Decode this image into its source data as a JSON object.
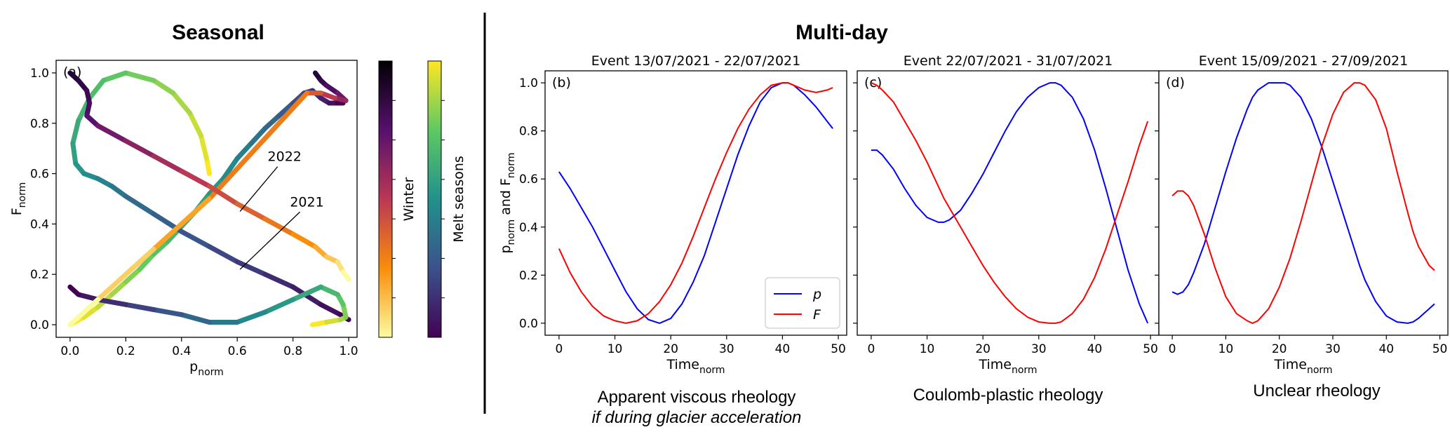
{
  "section_titles": {
    "left": "Seasonal",
    "right": "Multi-day"
  },
  "colorbars": {
    "winter_label": "Winter",
    "melt_label": "Melt seasons"
  },
  "captions": {
    "b_line1": "Apparent viscous rheology",
    "b_line2": "if during glacier acceleration",
    "c": "Coulomb-plastic rheology",
    "d": "Unclear rheology"
  },
  "colors": {
    "p": "#0000ff",
    "F": "#ff0000",
    "divider": "#000000"
  },
  "chart_data": [
    {
      "id": "a",
      "type": "line",
      "panel_label": "(a)",
      "xlabel": {
        "base": "p",
        "sub": "norm"
      },
      "ylabel": {
        "base": "F",
        "sub": "norm"
      },
      "xlim": [
        -0.05,
        1.03
      ],
      "ylim": [
        -0.05,
        1.05
      ],
      "xticks": [
        0.0,
        0.2,
        0.4,
        0.6,
        0.8,
        1.0
      ],
      "yticks": [
        0.0,
        0.2,
        0.4,
        0.6,
        0.8,
        1.0
      ],
      "tick_labels": [
        "0.0",
        "0.2",
        "0.4",
        "0.6",
        "0.8",
        "1.0"
      ],
      "grid": false,
      "annotations": [
        {
          "text": "2022",
          "x": 0.77,
          "y": 0.65,
          "point": [
            0.61,
            0.45
          ]
        },
        {
          "text": "2021",
          "x": 0.85,
          "y": 0.47,
          "point": [
            0.61,
            0.22
          ]
        }
      ],
      "series": [
        {
          "colormap": "viridis",
          "points": [
            [
              0.0,
              0.0
            ],
            [
              0.05,
              0.03
            ],
            [
              0.1,
              0.07
            ],
            [
              0.15,
              0.12
            ],
            [
              0.2,
              0.17
            ],
            [
              0.25,
              0.22
            ],
            [
              0.3,
              0.28
            ],
            [
              0.35,
              0.33
            ],
            [
              0.4,
              0.39
            ],
            [
              0.45,
              0.45
            ],
            [
              0.5,
              0.52
            ],
            [
              0.55,
              0.58
            ],
            [
              0.6,
              0.66
            ],
            [
              0.65,
              0.72
            ],
            [
              0.7,
              0.78
            ],
            [
              0.75,
              0.83
            ],
            [
              0.8,
              0.88
            ],
            [
              0.84,
              0.92
            ],
            [
              0.87,
              0.93
            ],
            [
              0.9,
              0.9
            ],
            [
              0.93,
              0.88
            ],
            [
              0.96,
              0.88
            ],
            [
              0.98,
              0.88
            ]
          ]
        },
        {
          "colormap": "viridis",
          "points": [
            [
              0.5,
              0.6
            ],
            [
              0.49,
              0.66
            ],
            [
              0.47,
              0.75
            ],
            [
              0.43,
              0.84
            ],
            [
              0.37,
              0.92
            ],
            [
              0.3,
              0.97
            ],
            [
              0.2,
              1.0
            ],
            [
              0.12,
              0.97
            ],
            [
              0.07,
              0.9
            ],
            [
              0.03,
              0.81
            ],
            [
              0.01,
              0.72
            ],
            [
              0.02,
              0.64
            ],
            [
              0.05,
              0.6
            ],
            [
              0.1,
              0.58
            ],
            [
              0.15,
              0.55
            ],
            [
              0.2,
              0.51
            ],
            [
              0.3,
              0.44
            ],
            [
              0.4,
              0.37
            ],
            [
              0.5,
              0.31
            ],
            [
              0.6,
              0.25
            ],
            [
              0.7,
              0.2
            ],
            [
              0.8,
              0.15
            ],
            [
              0.9,
              0.08
            ],
            [
              0.97,
              0.04
            ],
            [
              1.0,
              0.02
            ]
          ]
        },
        {
          "colormap": "viridis",
          "points": [
            [
              0.87,
              0.0
            ],
            [
              0.92,
              0.01
            ],
            [
              0.97,
              0.02
            ],
            [
              0.99,
              0.03
            ],
            [
              0.98,
              0.08
            ],
            [
              0.96,
              0.12
            ],
            [
              0.9,
              0.15
            ],
            [
              0.8,
              0.1
            ],
            [
              0.7,
              0.05
            ],
            [
              0.6,
              0.01
            ],
            [
              0.5,
              0.01
            ],
            [
              0.4,
              0.04
            ],
            [
              0.3,
              0.06
            ],
            [
              0.2,
              0.08
            ],
            [
              0.1,
              0.1
            ],
            [
              0.03,
              0.12
            ],
            [
              0.0,
              0.15
            ]
          ]
        },
        {
          "colormap": "plasma",
          "points": [
            [
              0.88,
              1.0
            ],
            [
              0.9,
              0.97
            ],
            [
              0.92,
              0.95
            ],
            [
              0.96,
              0.92
            ],
            [
              0.99,
              0.89
            ],
            [
              0.95,
              0.9
            ],
            [
              0.9,
              0.92
            ],
            [
              0.85,
              0.92
            ],
            [
              0.5,
              0.5
            ],
            [
              0.3,
              0.3
            ],
            [
              0.1,
              0.1
            ],
            [
              0.0,
              0.0
            ]
          ]
        },
        {
          "colormap": "plasma",
          "points": [
            [
              0.0,
              1.0
            ],
            [
              0.03,
              0.97
            ],
            [
              0.06,
              0.93
            ],
            [
              0.07,
              0.88
            ],
            [
              0.06,
              0.83
            ],
            [
              0.1,
              0.79
            ],
            [
              0.2,
              0.73
            ],
            [
              0.3,
              0.67
            ],
            [
              0.4,
              0.61
            ],
            [
              0.5,
              0.55
            ],
            [
              0.6,
              0.48
            ],
            [
              0.7,
              0.42
            ],
            [
              0.8,
              0.36
            ],
            [
              0.88,
              0.31
            ],
            [
              0.92,
              0.27
            ],
            [
              0.96,
              0.25
            ],
            [
              0.98,
              0.21
            ],
            [
              1.0,
              0.18
            ]
          ]
        }
      ]
    },
    {
      "id": "b",
      "type": "line",
      "title": "Event 13/07/2021 - 22/07/2021",
      "panel_label": "(b)",
      "xlabel": {
        "base": "Time",
        "sub": "norm"
      },
      "ylabel": {
        "parts": [
          "p",
          "norm",
          " and F",
          "norm"
        ]
      },
      "xlim": [
        -2.5,
        51.5
      ],
      "ylim": [
        -0.05,
        1.05
      ],
      "xticks": [
        0,
        10,
        20,
        30,
        40,
        50
      ],
      "yticks": [
        0.0,
        0.2,
        0.4,
        0.6,
        0.8,
        1.0
      ],
      "ytick_labels": [
        "0.0",
        "0.2",
        "0.4",
        "0.6",
        "0.8",
        "1.0"
      ],
      "legend": {
        "position": "lower-right",
        "entries": [
          "p",
          "F"
        ]
      },
      "x": [
        0,
        2,
        4,
        6,
        8,
        10,
        12,
        14,
        16,
        18,
        20,
        22,
        24,
        26,
        28,
        30,
        32,
        34,
        36,
        38,
        40,
        41,
        42,
        44,
        46,
        48,
        49
      ],
      "series": [
        {
          "name": "p",
          "values": [
            0.63,
            0.56,
            0.48,
            0.4,
            0.31,
            0.22,
            0.13,
            0.06,
            0.015,
            0.0,
            0.02,
            0.08,
            0.17,
            0.28,
            0.42,
            0.56,
            0.7,
            0.82,
            0.92,
            0.98,
            1.0,
            1.0,
            0.99,
            0.95,
            0.9,
            0.84,
            0.81
          ]
        },
        {
          "name": "F",
          "values": [
            0.31,
            0.21,
            0.13,
            0.07,
            0.03,
            0.01,
            0.0,
            0.01,
            0.04,
            0.09,
            0.16,
            0.25,
            0.36,
            0.48,
            0.6,
            0.71,
            0.81,
            0.89,
            0.95,
            0.99,
            1.0,
            1.0,
            0.99,
            0.97,
            0.96,
            0.97,
            0.98
          ]
        }
      ]
    },
    {
      "id": "c",
      "type": "line",
      "title": "Event 22/07/2021 - 31/07/2021",
      "panel_label": "(c)",
      "xlabel": {
        "base": "Time",
        "sub": "norm"
      },
      "xlim": [
        -2.5,
        51.5
      ],
      "ylim": [
        -0.05,
        1.05
      ],
      "xticks": [
        0,
        10,
        20,
        30,
        40,
        50
      ],
      "x": [
        0,
        1,
        2,
        4,
        6,
        8,
        10,
        12,
        13,
        14,
        16,
        18,
        20,
        22,
        24,
        26,
        28,
        30,
        32,
        33,
        34,
        36,
        38,
        40,
        42,
        44,
        46,
        48,
        49.5
      ],
      "series": [
        {
          "name": "p",
          "values": [
            0.72,
            0.72,
            0.7,
            0.64,
            0.56,
            0.49,
            0.44,
            0.42,
            0.42,
            0.43,
            0.47,
            0.54,
            0.62,
            0.71,
            0.8,
            0.88,
            0.94,
            0.98,
            1.0,
            1.0,
            0.99,
            0.94,
            0.85,
            0.72,
            0.56,
            0.39,
            0.22,
            0.08,
            0.0
          ]
        },
        {
          "name": "F",
          "values": [
            1.0,
            0.99,
            0.97,
            0.92,
            0.84,
            0.76,
            0.67,
            0.57,
            0.52,
            0.48,
            0.4,
            0.32,
            0.24,
            0.17,
            0.11,
            0.06,
            0.025,
            0.005,
            0.0,
            0.0,
            0.005,
            0.04,
            0.1,
            0.19,
            0.31,
            0.45,
            0.59,
            0.74,
            0.84
          ]
        }
      ]
    },
    {
      "id": "d",
      "type": "line",
      "title": "Event 15/09/2021 - 27/09/2021",
      "panel_label": "(d)",
      "xlabel": {
        "base": "Time",
        "sub": "norm"
      },
      "xlim": [
        -2.5,
        51.5
      ],
      "ylim": [
        -0.05,
        1.05
      ],
      "xticks": [
        0,
        10,
        20,
        30,
        40,
        50
      ],
      "x": [
        0,
        1,
        2,
        3,
        4,
        6,
        8,
        10,
        12,
        14,
        15,
        16,
        18,
        20,
        21,
        22,
        24,
        26,
        28,
        30,
        32,
        34,
        35,
        36,
        38,
        40,
        42,
        44,
        45,
        46,
        48,
        49
      ],
      "series": [
        {
          "name": "p",
          "values": [
            0.13,
            0.12,
            0.13,
            0.16,
            0.21,
            0.33,
            0.48,
            0.63,
            0.77,
            0.89,
            0.94,
            0.97,
            1.0,
            1.0,
            1.0,
            0.99,
            0.94,
            0.85,
            0.73,
            0.59,
            0.45,
            0.31,
            0.24,
            0.18,
            0.09,
            0.03,
            0.005,
            0.0,
            0.005,
            0.02,
            0.06,
            0.08
          ]
        },
        {
          "name": "F",
          "values": [
            0.53,
            0.55,
            0.55,
            0.53,
            0.49,
            0.37,
            0.23,
            0.11,
            0.04,
            0.01,
            0.0,
            0.01,
            0.06,
            0.15,
            0.21,
            0.27,
            0.42,
            0.58,
            0.74,
            0.87,
            0.96,
            1.0,
            1.0,
            0.99,
            0.93,
            0.81,
            0.63,
            0.46,
            0.38,
            0.32,
            0.24,
            0.22
          ]
        }
      ]
    }
  ]
}
